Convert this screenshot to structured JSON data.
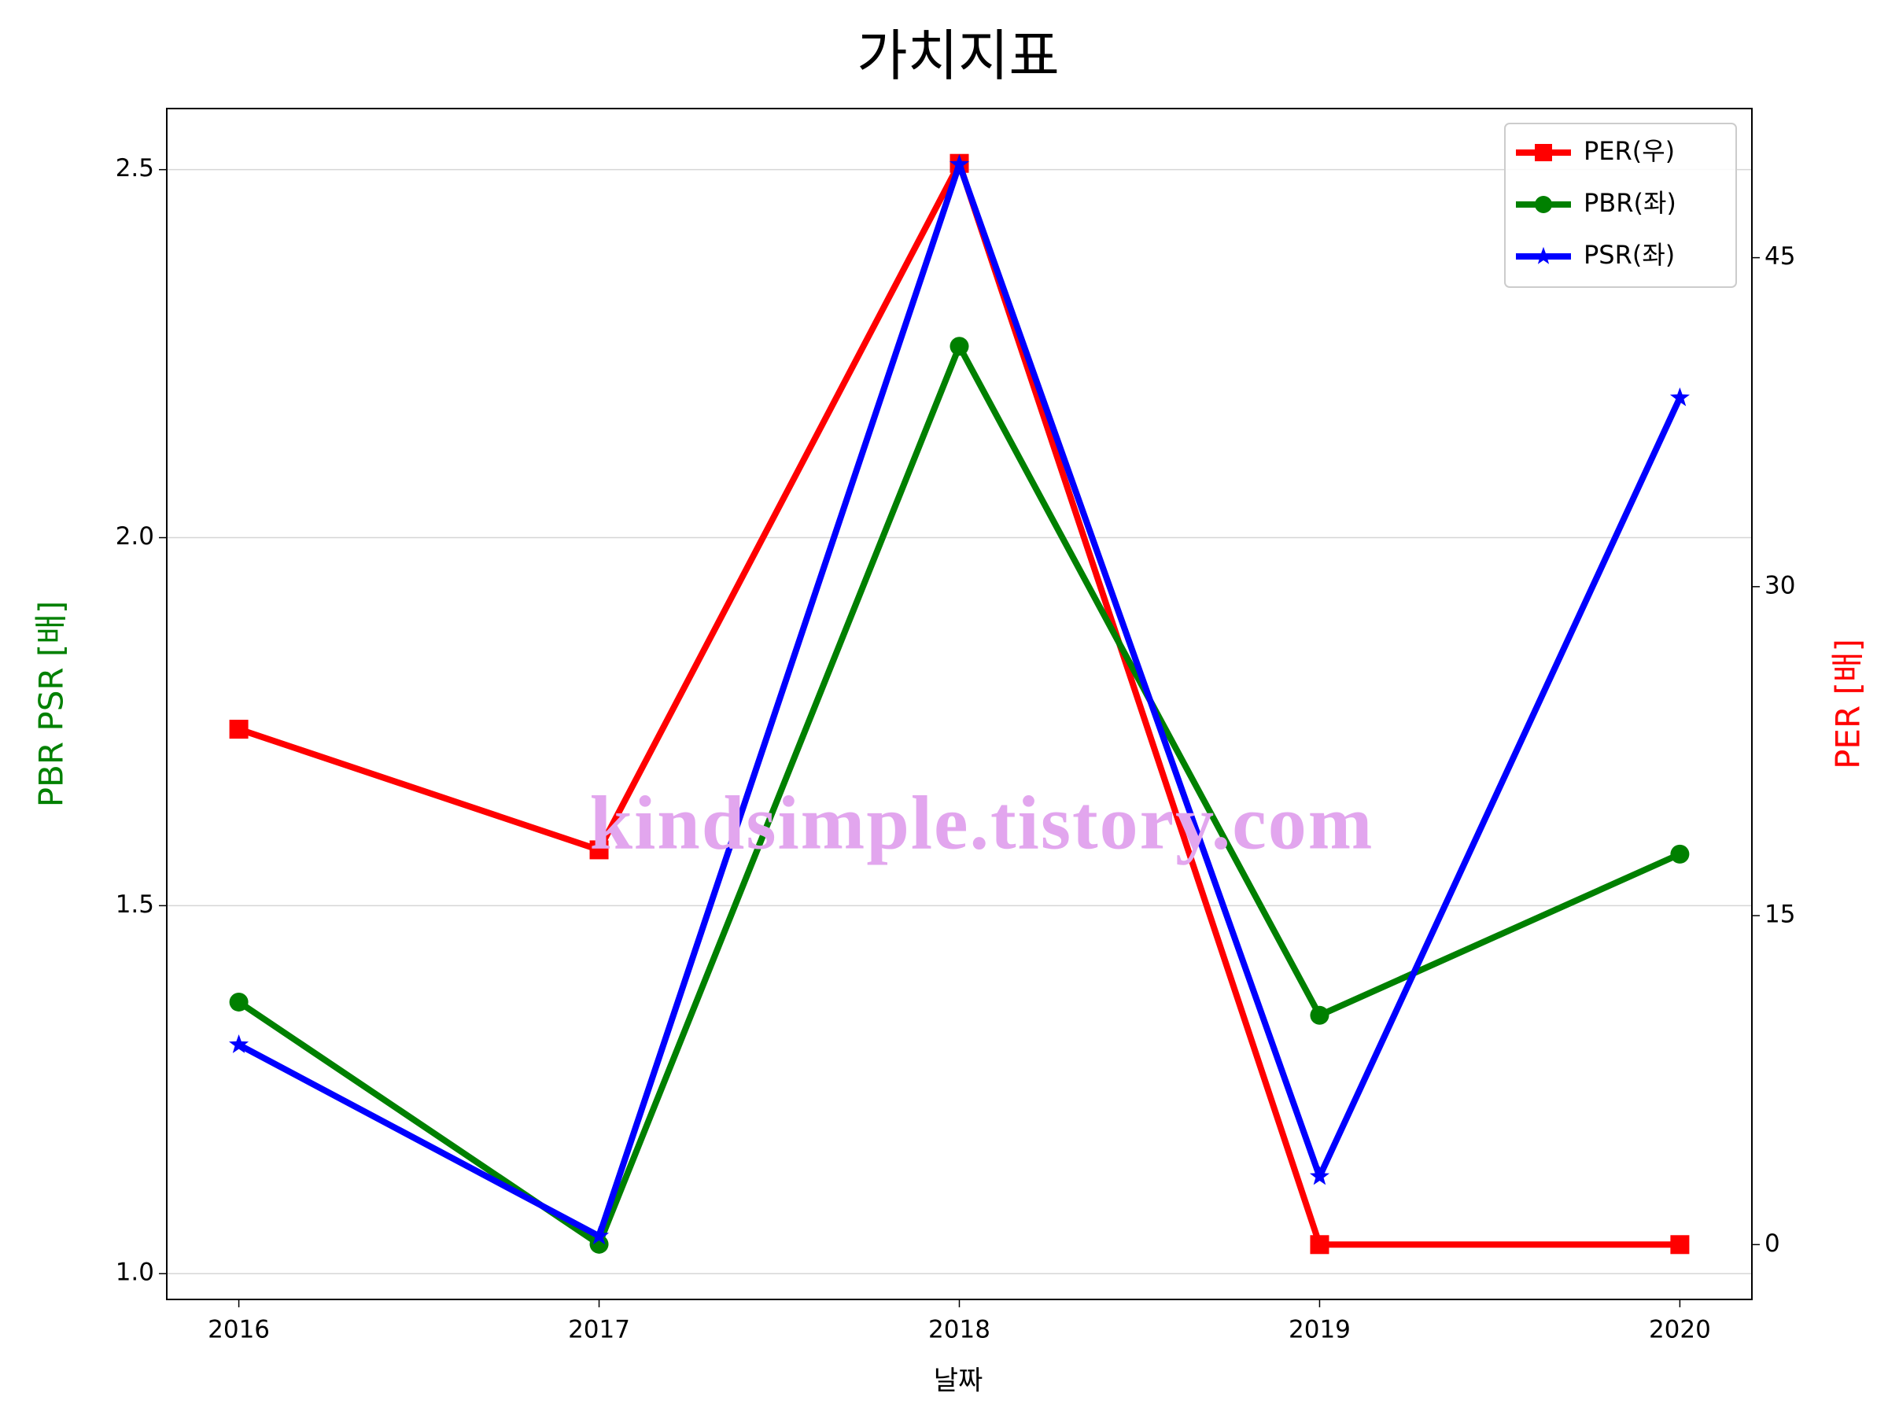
{
  "chart_data": {
    "type": "line",
    "title": "가치지표",
    "x_label": "날짜",
    "y_label": "PBR PSR [배]",
    "y2_label": "PER [배]",
    "y_label_color": "green",
    "y2_label_color": "red",
    "watermark": "kindsimple.tistory.com",
    "watermark_color": "#e2a6ee",
    "x": [
      2016,
      2017,
      2018,
      2019,
      2020
    ],
    "xlim": [
      2015.8,
      2020.2
    ],
    "xticks": [
      2016,
      2017,
      2018,
      2019,
      2020
    ],
    "ylim": [
      0.965,
      2.583
    ],
    "yticks": [
      {
        "value": 1.0,
        "label": "1.0"
      },
      1.5,
      {
        "value": 2.0,
        "label": "2.0"
      },
      2.5
    ],
    "y2lim": [
      -2.5,
      51.8
    ],
    "y2ticks": [
      0,
      15,
      30,
      45
    ],
    "grid": true,
    "legend": "upper right",
    "series": [
      {
        "name": "PER(우)",
        "color": "#ff0000",
        "marker": "square",
        "axis": "y2",
        "values": [
          23.5,
          18.0,
          49.3,
          0,
          0
        ]
      },
      {
        "name": "PBR(좌)",
        "color": "#008000",
        "marker": "circle",
        "values": [
          1.369,
          1.04,
          2.26,
          1.351,
          1.57
        ]
      },
      {
        "name": "PSR(좌)",
        "color": "#0000ff",
        "marker": "star",
        "values": [
          1.311,
          1.051,
          2.507,
          1.132,
          2.19
        ]
      }
    ]
  }
}
